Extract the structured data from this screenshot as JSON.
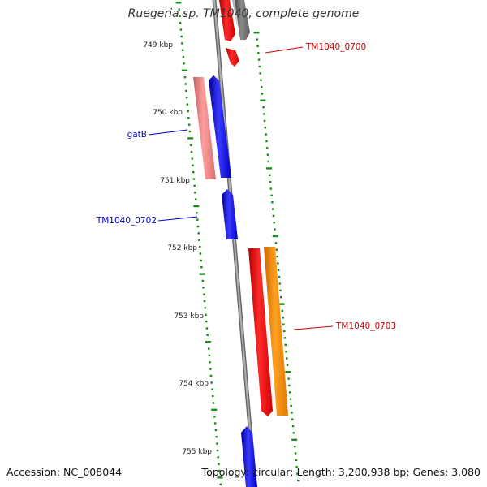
{
  "title": "Ruegeria sp. TM1040, complete genome",
  "footer": {
    "accession": "Accession: NC_008044",
    "summary": "Topology: circular; Length: 3,200,938 bp; Genes: 3,080"
  },
  "colors": {
    "backbone": "#8c8c8c",
    "tick": "#1a8a1a",
    "blue_gene": "#0000ff",
    "red_gene": "#ff0000",
    "salmon_gene": "#f08080",
    "orange_gene": "#ff8c00",
    "gray_gene": "#777777",
    "light_gray_gene": "#c8c8c8",
    "label_blue": "#0000cc",
    "label_red": "#cc0000"
  },
  "scale": {
    "labels": [
      "749 kbp",
      "750 kbp",
      "751 kbp",
      "752 kbp",
      "753 kbp",
      "754 kbp",
      "755 kbp"
    ]
  },
  "gene_labels": [
    {
      "text": "TM1040_0700",
      "color": "red"
    },
    {
      "text": "gatB",
      "color": "blue"
    },
    {
      "text": "TM1040_0702",
      "color": "blue"
    },
    {
      "text": "TM1040_0703",
      "color": "red"
    }
  ]
}
